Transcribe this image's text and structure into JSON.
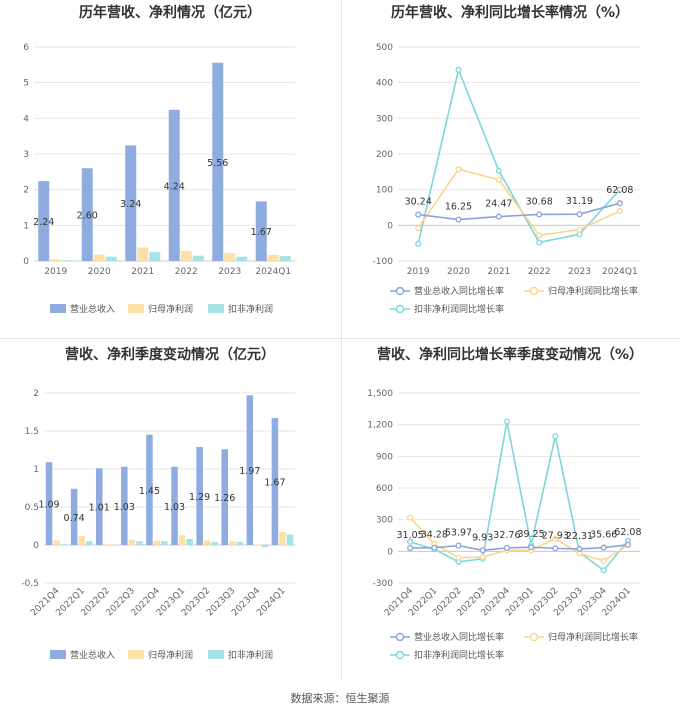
{
  "source": "数据来源：恒生聚源",
  "colors": {
    "revenue": "#8eacdf",
    "net_profit": "#fde0a8",
    "deducted_profit": "#a6e3e6",
    "revenue_line": "#8ba4d9",
    "net_line": "#fbd48c",
    "deducted_line": "#7dd6dd",
    "grid": "#e6e6e6",
    "axis": "#cccccc"
  },
  "chart_data": [
    {
      "type": "bar",
      "title": "历年营收、净利情况（亿元）",
      "categories": [
        "2019",
        "2020",
        "2021",
        "2022",
        "2023",
        "2024Q1"
      ],
      "ylim": [
        0,
        6
      ],
      "yticks": [
        "0",
        "1",
        "2",
        "3",
        "4",
        "5",
        "6"
      ],
      "ytick_values": [
        0,
        1,
        2,
        3,
        4,
        5,
        6
      ],
      "series": [
        {
          "name": "营业总收入",
          "values": [
            2.24,
            2.6,
            3.24,
            4.24,
            5.56,
            1.67
          ],
          "labels": [
            "2.24",
            "2.60",
            "3.24",
            "4.24",
            "5.56",
            "1.67"
          ]
        },
        {
          "name": "归母净利润",
          "values": [
            0.05,
            0.18,
            0.38,
            0.28,
            0.22,
            0.17
          ]
        },
        {
          "name": "扣非净利润",
          "values": [
            0.02,
            0.12,
            0.25,
            0.15,
            0.12,
            0.14
          ]
        }
      ],
      "legend_position": "bottom"
    },
    {
      "type": "line",
      "title": "历年营收、净利同比增长率情况（%）",
      "categories": [
        "2019",
        "2020",
        "2021",
        "2022",
        "2023",
        "2024Q1"
      ],
      "ylim": [
        -100,
        500
      ],
      "yticks": [
        "-100",
        "0",
        "100",
        "200",
        "300",
        "400",
        "500"
      ],
      "ytick_values": [
        -100,
        0,
        100,
        200,
        300,
        400,
        500
      ],
      "series": [
        {
          "name": "营业总收入同比增长率",
          "values": [
            30.24,
            16.25,
            24.47,
            30.68,
            31.19,
            62.08
          ],
          "labels": [
            "30.24",
            "16.25",
            "24.47",
            "30.68",
            "31.19",
            "62.08"
          ]
        },
        {
          "name": "归母净利润同比增长率",
          "values": [
            -8,
            157,
            128,
            -28,
            -12,
            40
          ]
        },
        {
          "name": "扣非净利润同比增长率",
          "values": [
            -52,
            436,
            153,
            -48,
            -25,
            100
          ]
        }
      ],
      "legend_position": "bottom"
    },
    {
      "type": "bar",
      "title": "营收、净利季度变动情况（亿元）",
      "categories": [
        "2021Q4",
        "2022Q1",
        "2022Q2",
        "2022Q3",
        "2022Q4",
        "2023Q1",
        "2023Q2",
        "2023Q3",
        "2023Q4",
        "2024Q1"
      ],
      "ylim": [
        -0.5,
        2
      ],
      "yticks": [
        "-0.5",
        "0",
        "0.5",
        "1",
        "1.5",
        "2"
      ],
      "ytick_values": [
        -0.5,
        0,
        0.5,
        1,
        1.5,
        2
      ],
      "series": [
        {
          "name": "营业总收入",
          "values": [
            1.09,
            0.74,
            1.01,
            1.03,
            1.45,
            1.03,
            1.29,
            1.26,
            1.97,
            1.67
          ],
          "labels": [
            "1.09",
            "0.74",
            "1.01",
            "1.03",
            "1.45",
            "1.03",
            "1.29",
            "1.26",
            "1.97",
            "1.67"
          ]
        },
        {
          "name": "归母净利润",
          "values": [
            0.06,
            0.12,
            0.01,
            0.07,
            0.06,
            0.13,
            0.06,
            0.05,
            0.01,
            0.17
          ]
        },
        {
          "name": "扣非净利润",
          "values": [
            0.01,
            0.05,
            0.0,
            0.05,
            0.05,
            0.08,
            0.04,
            0.04,
            -0.03,
            0.14
          ]
        }
      ],
      "legend_position": "bottom"
    },
    {
      "type": "line",
      "title": "营收、净利同比增长率季度变动情况（%）",
      "categories": [
        "2021Q4",
        "2022Q1",
        "2022Q2",
        "2022Q3",
        "2022Q4",
        "2023Q1",
        "2023Q2",
        "2023Q3",
        "2023Q4",
        "2024Q1"
      ],
      "ylim": [
        -300,
        1500
      ],
      "yticks": [
        "-300",
        "0",
        "300",
        "600",
        "900",
        "1,200",
        "1,500"
      ],
      "ytick_values": [
        -300,
        0,
        300,
        600,
        900,
        1200,
        1500
      ],
      "series": [
        {
          "name": "营业总收入同比增长率",
          "values": [
            31.05,
            34.28,
            53.97,
            9.93,
            32.76,
            39.25,
            27.93,
            22.31,
            35.66,
            62.08
          ],
          "labels": [
            "31.05",
            "34.28",
            "53.97",
            "9.93",
            "32.76",
            "39.25",
            "27.93",
            "22.31",
            "35.66",
            "62.08"
          ]
        },
        {
          "name": "归母净利润同比增长率",
          "values": [
            320,
            70,
            -60,
            -55,
            10,
            10,
            120,
            -20,
            -90,
            60
          ]
        },
        {
          "name": "扣非净利润同比增长率",
          "values": [
            90,
            20,
            -100,
            -70,
            1230,
            60,
            1090,
            -10,
            -180,
            100
          ]
        }
      ],
      "legend_position": "bottom"
    }
  ]
}
